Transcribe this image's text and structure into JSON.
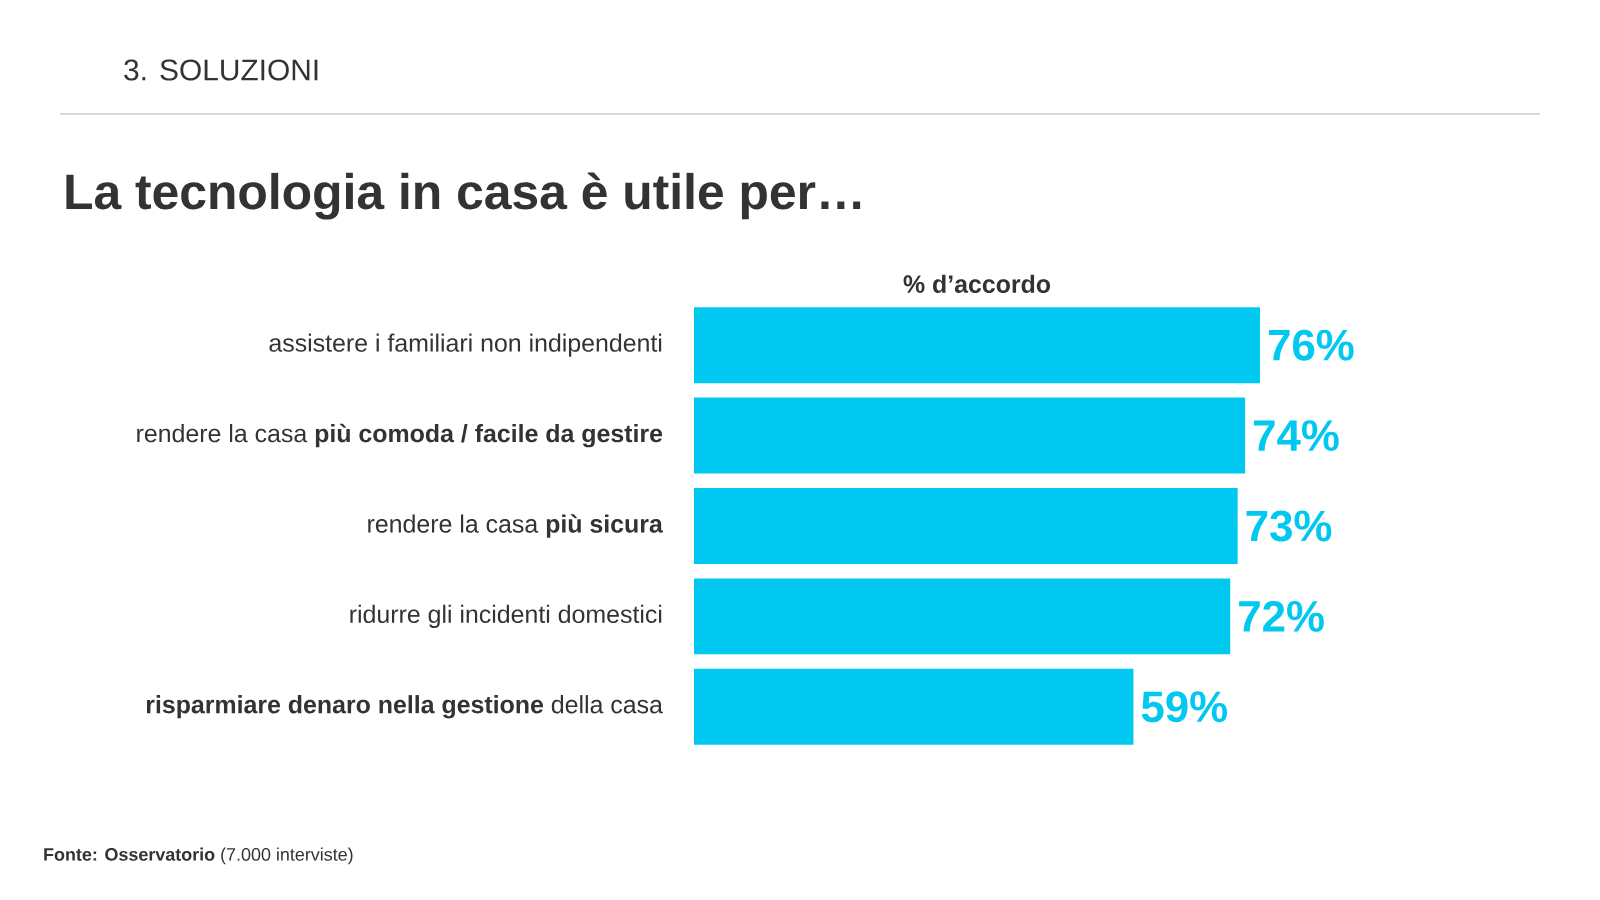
{
  "chart_data": {
    "type": "bar",
    "orientation": "horizontal",
    "title": "La tecnologia in casa è utile per…",
    "xlabel": "% d’accordo",
    "categories": [
      "assistere i familiari non indipendenti",
      "rendere la casa **più comoda / facile da gestire**",
      "rendere la casa **più sicura**",
      "ridurre gli incidenti domestici",
      "**risparmiare denaro nella gestione** della casa"
    ],
    "values": [
      76,
      74,
      73,
      72,
      59
    ],
    "value_labels": [
      "76%",
      "74%",
      "73%",
      "72%",
      "59%"
    ],
    "color": "#00c8f0",
    "annotations": [
      "3. SOLUZIONI",
      "**Fonte: Osservatorio** (7.000 interviste)"
    ]
  }
}
